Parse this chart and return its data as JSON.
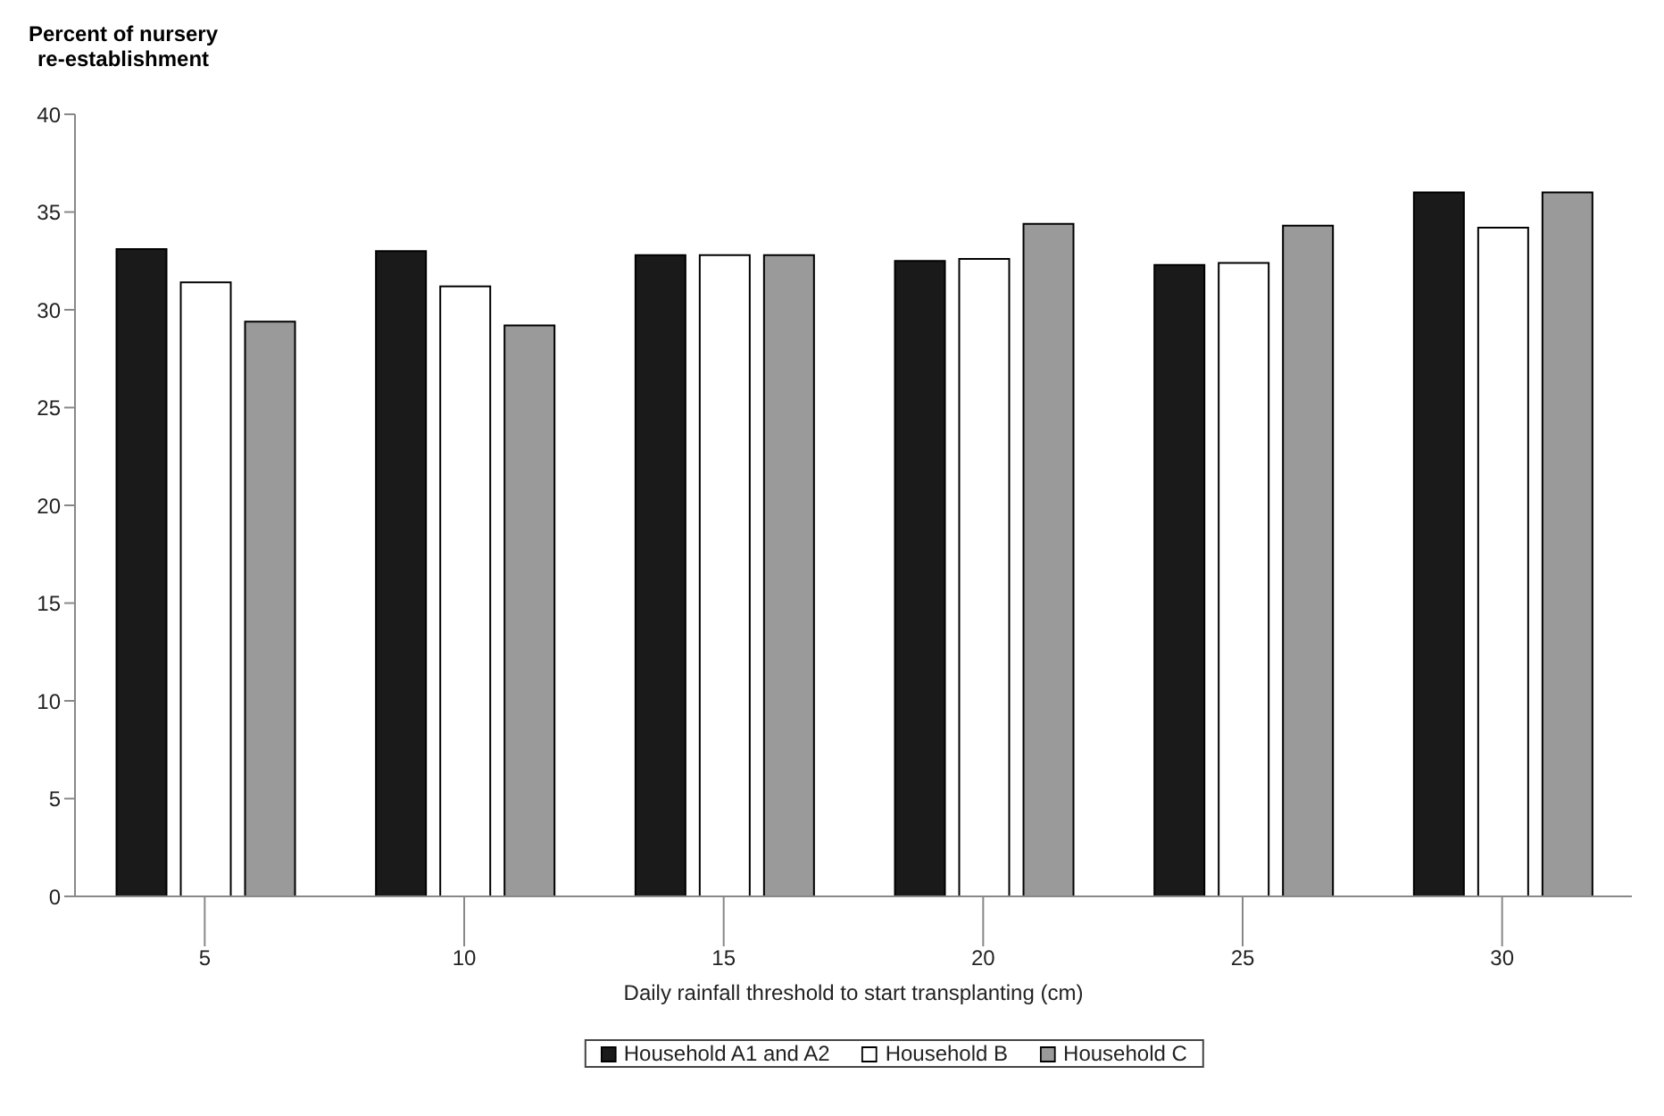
{
  "chart_data": {
    "type": "bar",
    "ylabel": "Percent of nursery re-establishment",
    "xlabel": "Daily rainfall threshold to start transplanting (cm)",
    "categories": [
      "5",
      "10",
      "15",
      "20",
      "25",
      "30"
    ],
    "series": [
      {
        "name": "Household A1 and A2",
        "color": "#1a1a1a",
        "values": [
          33.1,
          33.0,
          32.8,
          32.5,
          32.3,
          36.0
        ]
      },
      {
        "name": "Household B",
        "color": "#ffffff",
        "values": [
          31.4,
          31.2,
          32.8,
          32.6,
          32.4,
          34.2
        ]
      },
      {
        "name": "Household C",
        "color": "#9a9a9a",
        "values": [
          29.4,
          29.2,
          32.8,
          34.4,
          34.3,
          36.0
        ]
      }
    ],
    "ylim": [
      0,
      40
    ],
    "yticks": [
      0,
      5,
      10,
      15,
      20,
      25,
      30,
      35,
      40
    ],
    "grid": false,
    "legend": "bottom"
  }
}
